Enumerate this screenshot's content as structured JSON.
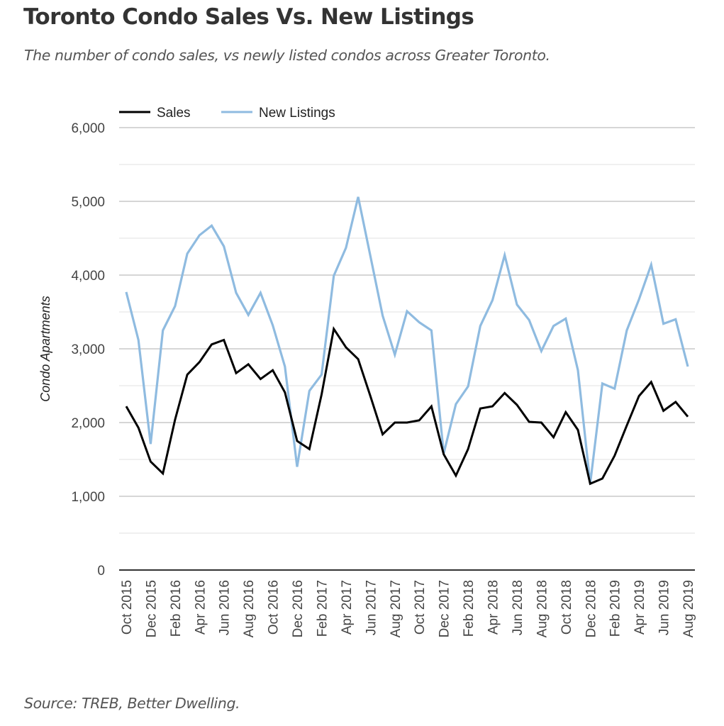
{
  "header": {
    "title": "Toronto Condo Sales Vs. New Listings",
    "subtitle": "The number of condo sales, vs newly listed condos across Greater Toronto."
  },
  "footer": {
    "source": "Source: TREB, Better Dwelling."
  },
  "colors": {
    "sales": "#000000",
    "new_listings": "#8fbbe0",
    "grid_major": "#c8c8c8",
    "grid_minor": "#e6e6e6",
    "axis": "#333333"
  },
  "chart_data": {
    "type": "line",
    "title": "Toronto Condo Sales Vs. New Listings",
    "subtitle": "The number of condo sales, vs newly listed condos across Greater Toronto.",
    "xlabel": "",
    "ylabel": "Condo Apartments",
    "ylim": [
      0,
      6000
    ],
    "yticks": [
      0,
      1000,
      2000,
      3000,
      4000,
      5000,
      6000
    ],
    "ytick_labels": [
      "0",
      "1,000",
      "2,000",
      "3,000",
      "4,000",
      "5,000",
      "6,000"
    ],
    "minor_gridlines": [
      500,
      1500,
      2500,
      3500,
      4500,
      5500
    ],
    "grid": true,
    "legend_position": "top-left",
    "x": [
      "Oct 2015",
      "Nov 2015",
      "Dec 2015",
      "Jan 2016",
      "Feb 2016",
      "Mar 2016",
      "Apr 2016",
      "May 2016",
      "Jun 2016",
      "Jul 2016",
      "Aug 2016",
      "Sep 2016",
      "Oct 2016",
      "Nov 2016",
      "Dec 2016",
      "Jan 2017",
      "Feb 2017",
      "Mar 2017",
      "Apr 2017",
      "May 2017",
      "Jun 2017",
      "Jul 2017",
      "Aug 2017",
      "Sep 2017",
      "Oct 2017",
      "Nov 2017",
      "Dec 2017",
      "Jan 2018",
      "Feb 2018",
      "Mar 2018",
      "Apr 2018",
      "May 2018",
      "Jun 2018",
      "Jul 2018",
      "Aug 2018",
      "Sep 2018",
      "Oct 2018",
      "Nov 2018",
      "Dec 2018",
      "Jan 2019",
      "Feb 2019",
      "Mar 2019",
      "Apr 2019",
      "May 2019",
      "Jun 2019",
      "Jul 2019",
      "Aug 2019"
    ],
    "xtick_labels": [
      "Oct 2015",
      "Dec 2015",
      "Feb 2016",
      "Apr 2016",
      "Jun 2016",
      "Aug 2016",
      "Oct 2016",
      "Dec 2016",
      "Feb 2017",
      "Apr 2017",
      "Jun 2017",
      "Aug 2017",
      "Oct 2017",
      "Dec 2017",
      "Feb 2018",
      "Apr 2018",
      "Jun 2018",
      "Aug 2018",
      "Oct 2018",
      "Dec 2018",
      "Feb 2019",
      "Apr 2019",
      "Jun 2019",
      "Aug 2019"
    ],
    "series": [
      {
        "name": "Sales",
        "color": "#000000",
        "values": [
          2220,
          1930,
          1470,
          1310,
          2040,
          2650,
          2820,
          3060,
          3120,
          2670,
          2790,
          2590,
          2710,
          2410,
          1750,
          1640,
          2380,
          3270,
          3020,
          2860,
          2360,
          1840,
          2000,
          2000,
          2030,
          2220,
          1570,
          1280,
          1640,
          2190,
          2220,
          2400,
          2240,
          2010,
          2000,
          1800,
          2140,
          1900,
          1170,
          1240,
          1550,
          1960,
          2360,
          2550,
          2160,
          2280,
          2080
        ]
      },
      {
        "name": "New Listings",
        "color": "#8fbbe0",
        "values": [
          3770,
          3120,
          1710,
          3250,
          3580,
          4290,
          4540,
          4670,
          4390,
          3760,
          3460,
          3760,
          3320,
          2760,
          1400,
          2430,
          2650,
          3990,
          4370,
          5060,
          4260,
          3450,
          2920,
          3510,
          3360,
          3250,
          1580,
          2250,
          2490,
          3310,
          3660,
          4270,
          3600,
          3390,
          2970,
          3310,
          3410,
          2710,
          1170,
          2530,
          2460,
          3250,
          3670,
          4140,
          3340,
          3400,
          2760
        ]
      }
    ]
  }
}
